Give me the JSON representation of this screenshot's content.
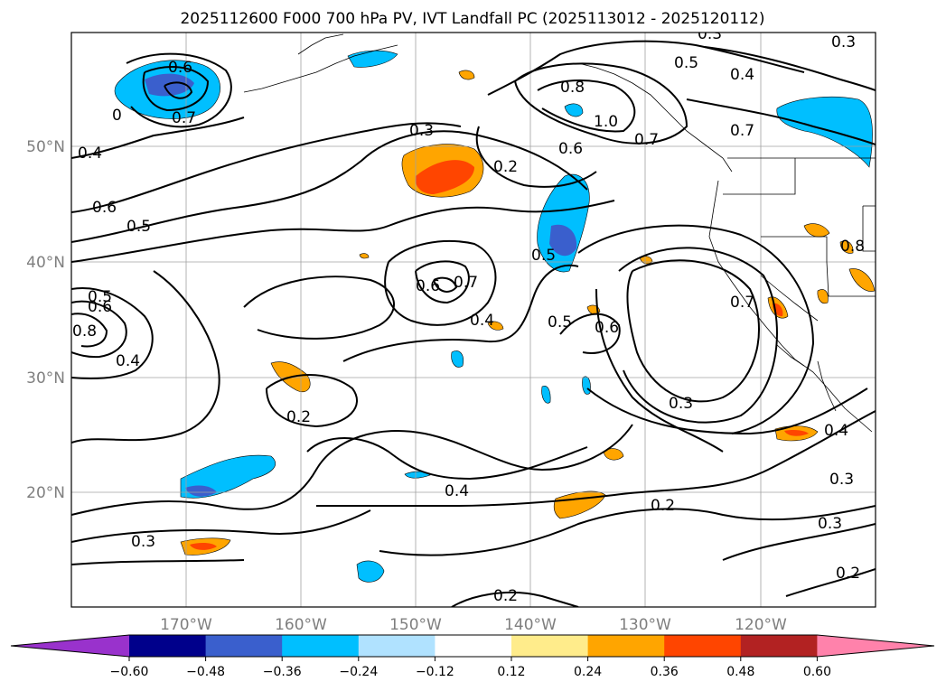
{
  "title": "2025112600 F000 700 hPa PV, IVT Landfall PC (2025113012 - 2025120112)",
  "map": {
    "lon_ticks": [
      "170°W",
      "160°W",
      "150°W",
      "140°W",
      "130°W",
      "120°W"
    ],
    "lat_ticks": [
      "50°N",
      "40°N",
      "30°N",
      "20°N"
    ],
    "grid": true
  },
  "contour_labels": [
    {
      "text": "0.6"
    },
    {
      "text": "0.7"
    },
    {
      "text": "0"
    },
    {
      "text": "0.4"
    },
    {
      "text": "0.6"
    },
    {
      "text": "0.5"
    },
    {
      "text": "0.3"
    },
    {
      "text": "0.2"
    },
    {
      "text": "0.8"
    },
    {
      "text": "1.0"
    },
    {
      "text": "0.6"
    },
    {
      "text": "0.7"
    },
    {
      "text": "0.5"
    },
    {
      "text": "0.4"
    },
    {
      "text": "0.3"
    },
    {
      "text": "0.7"
    },
    {
      "text": "0.5"
    },
    {
      "text": "0.6"
    },
    {
      "text": "0.7"
    },
    {
      "text": "0.4"
    },
    {
      "text": "0.5"
    },
    {
      "text": "0.6"
    },
    {
      "text": "0.5"
    },
    {
      "text": "0.6"
    },
    {
      "text": "0.8"
    },
    {
      "text": "0.4"
    },
    {
      "text": "0.2"
    },
    {
      "text": "0.7"
    },
    {
      "text": "0.8"
    },
    {
      "text": "0.3"
    },
    {
      "text": "0.4"
    },
    {
      "text": "0.2"
    },
    {
      "text": "0.3"
    },
    {
      "text": "0.3"
    },
    {
      "text": "0.2"
    },
    {
      "text": "0.2"
    },
    {
      "text": "0.4"
    },
    {
      "text": "0.3"
    },
    {
      "text": "0.3"
    }
  ],
  "colorbar": {
    "tick_labels": [
      "−0.60",
      "−0.48",
      "−0.36",
      "−0.24",
      "−0.12",
      "0.12",
      "0.24",
      "0.36",
      "0.48",
      "0.60"
    ],
    "colors": [
      "#9932cc",
      "#00008b",
      "#3a5fcd",
      "#00bfff",
      "#b0e2ff",
      "#ffffff",
      "#ffec8b",
      "#ffa500",
      "#ff4500",
      "#b22222",
      "#ff82ab"
    ]
  }
}
